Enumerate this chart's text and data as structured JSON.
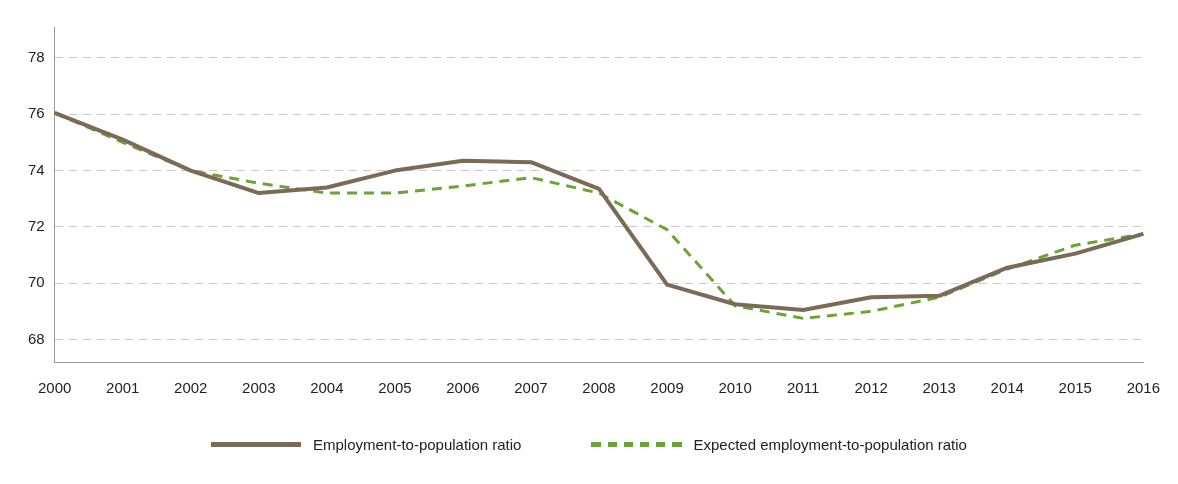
{
  "chart_data": {
    "type": "line",
    "categories": [
      "2000",
      "2001",
      "2002",
      "2003",
      "2004",
      "2005",
      "2006",
      "2007",
      "2008",
      "2009",
      "2010",
      "2011",
      "2012",
      "2013",
      "2014",
      "2015",
      "2016"
    ],
    "series": [
      {
        "name": "Employment-to-population ratio",
        "color": "#7b6a58",
        "line_style": "solid",
        "values": [
          76.05,
          75.1,
          74.0,
          73.2,
          73.4,
          74.0,
          74.35,
          74.3,
          73.35,
          69.95,
          69.25,
          69.05,
          69.5,
          69.55,
          70.55,
          71.05,
          71.75
        ]
      },
      {
        "name": "Expected employment-to-population ratio",
        "color": "#6aa534",
        "line_style": "dashed",
        "values": [
          76.05,
          75.0,
          74.0,
          73.55,
          73.2,
          73.2,
          73.45,
          73.75,
          73.2,
          71.9,
          69.2,
          68.75,
          69.0,
          69.5,
          70.5,
          71.35,
          71.75
        ]
      }
    ],
    "ylim": [
      67.2,
      79.1
    ],
    "yticks": [
      68,
      70,
      72,
      74,
      76,
      78
    ],
    "grid": "y",
    "legend": "bottom",
    "marker": "none"
  }
}
